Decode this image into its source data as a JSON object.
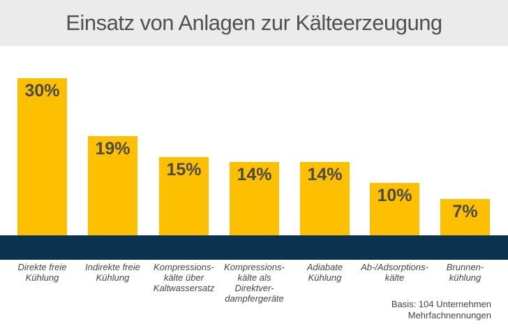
{
  "chart_data": {
    "type": "bar",
    "title": "Einsatz von Anlagen zur Kälteerzeugung",
    "categories": [
      "Direkte freie\nKühlung",
      "Indirekte freie\nKühlung",
      "Kompressions-\nkälte über\nKaltwassersatz",
      "Kompressions-\nkälte als\nDirektver-\ndampfergeräte",
      "Adiabate\nKühlung",
      "Ab-/Adsorptions-\nkälte",
      "Brunnen-\nkühlung"
    ],
    "values": [
      30,
      19,
      15,
      14,
      14,
      10,
      7
    ],
    "data_labels": [
      "30%",
      "19%",
      "15%",
      "14%",
      "14%",
      "10%",
      "7%"
    ],
    "unit": "%",
    "ylim": [
      0,
      30
    ],
    "grid": false,
    "colors": {
      "bar": "#fcc000",
      "band": "#0a3350",
      "header": "#ebebeb"
    }
  },
  "notes": [
    "Basis: 104 Unternehmen",
    "Mehrfachnennungen"
  ]
}
